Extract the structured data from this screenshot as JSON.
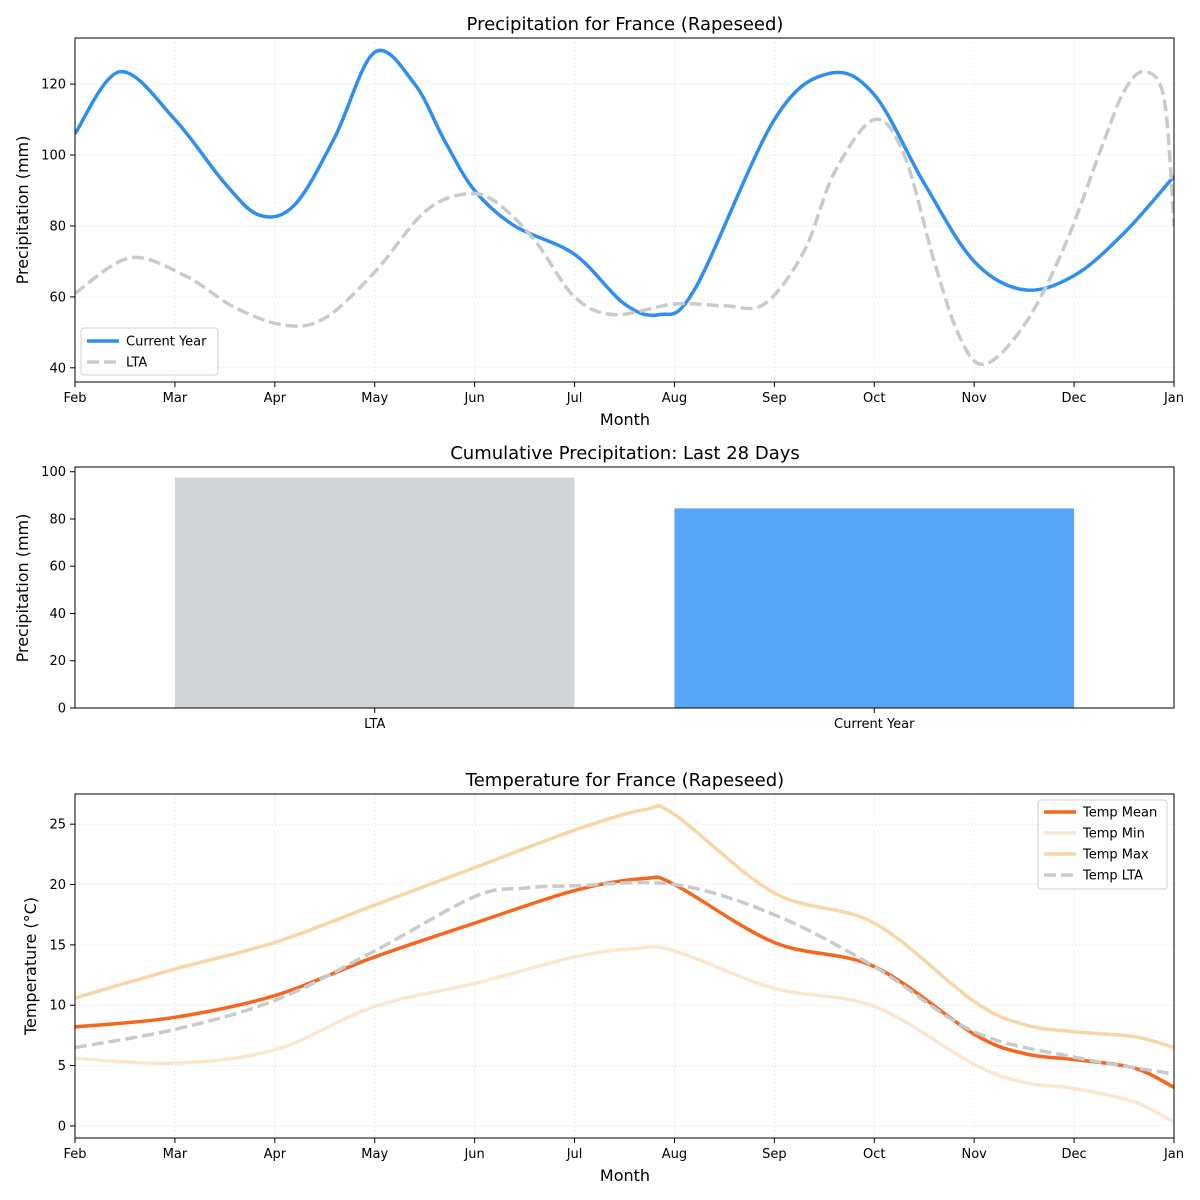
{
  "chart_data": [
    {
      "type": "line",
      "title": "Precipitation for France (Rapeseed)",
      "xlabel": "Month",
      "ylabel": "Precipitation (mm)",
      "x_ticks": [
        "Feb",
        "Mar",
        "Apr",
        "May",
        "Jun",
        "Jul",
        "Aug",
        "Sep",
        "Oct",
        "Nov",
        "Dec",
        "Jan"
      ],
      "xlim": [
        0,
        11
      ],
      "ylim": [
        36,
        133
      ],
      "y_ticks": [
        40,
        60,
        80,
        100,
        120
      ],
      "grid": true,
      "legend_position": "lower-left",
      "series": [
        {
          "name": "Current Year",
          "color": "#2f8ff0",
          "style": "solid",
          "points": [
            [
              0,
              106
            ],
            [
              0.45,
              123.5
            ],
            [
              1,
              110
            ],
            [
              1.5,
              92
            ],
            [
              1.85,
              83
            ],
            [
              2.2,
              86
            ],
            [
              2.6,
              105
            ],
            [
              3,
              129
            ],
            [
              3.4,
              120
            ],
            [
              3.7,
              104
            ],
            [
              4,
              90
            ],
            [
              4.4,
              80
            ],
            [
              5,
              72
            ],
            [
              5.5,
              58
            ],
            [
              5.85,
              55
            ],
            [
              6.2,
              62
            ],
            [
              7,
              110
            ],
            [
              7.55,
              123
            ],
            [
              8,
              117
            ],
            [
              8.5,
              92
            ],
            [
              9,
              70
            ],
            [
              9.5,
              62
            ],
            [
              10,
              66
            ],
            [
              10.5,
              78
            ],
            [
              11,
              94
            ]
          ]
        },
        {
          "name": "LTA",
          "color": "#c8cbcd",
          "style": "dashed",
          "points": [
            [
              0,
              61
            ],
            [
              0.55,
              71
            ],
            [
              1.1,
              66
            ],
            [
              1.6,
              57
            ],
            [
              2.1,
              52
            ],
            [
              2.5,
              54
            ],
            [
              3,
              67
            ],
            [
              3.5,
              84
            ],
            [
              3.9,
              89
            ],
            [
              4.2,
              87
            ],
            [
              4.6,
              76
            ],
            [
              5,
              60
            ],
            [
              5.4,
              55
            ],
            [
              6,
              58
            ],
            [
              6.5,
              57.5
            ],
            [
              6.9,
              58
            ],
            [
              7.3,
              73
            ],
            [
              7.6,
              95
            ],
            [
              8,
              110
            ],
            [
              8.3,
              100
            ],
            [
              8.6,
              70
            ],
            [
              8.85,
              49
            ],
            [
              9.1,
              41
            ],
            [
              9.5,
              52
            ],
            [
              9.9,
              74
            ],
            [
              10.3,
              104
            ],
            [
              10.5,
              118
            ],
            [
              10.7,
              123.5
            ],
            [
              10.9,
              116
            ],
            [
              11,
              80
            ]
          ]
        }
      ]
    },
    {
      "type": "bar",
      "title": "Cumulative Precipitation: Last 28 Days",
      "xlabel": "",
      "ylabel": "Precipitation (mm)",
      "categories": [
        "LTA",
        "Current Year"
      ],
      "values": [
        97.5,
        84.5
      ],
      "colors": [
        "#d1d5d8",
        "#58a6fa"
      ],
      "ylim": [
        0,
        102
      ],
      "y_ticks": [
        0,
        20,
        40,
        60,
        80,
        100
      ],
      "grid": false
    },
    {
      "type": "line",
      "title": "Temperature for France (Rapeseed)",
      "xlabel": "Month",
      "ylabel": "Temperature (°C)",
      "x_ticks": [
        "Feb",
        "Mar",
        "Apr",
        "May",
        "Jun",
        "Jul",
        "Aug",
        "Sep",
        "Oct",
        "Nov",
        "Dec",
        "Jan"
      ],
      "xlim": [
        0,
        11
      ],
      "ylim": [
        -1,
        27.5
      ],
      "y_ticks": [
        0,
        5,
        10,
        15,
        20,
        25
      ],
      "grid": true,
      "legend_position": "top-right",
      "series": [
        {
          "name": "Temp Mean",
          "color": "#f5661f",
          "style": "solid",
          "width": 3.5,
          "points": [
            [
              0,
              8.2
            ],
            [
              1,
              9.0
            ],
            [
              2,
              10.8
            ],
            [
              3,
              14.0
            ],
            [
              4,
              16.8
            ],
            [
              5,
              19.5
            ],
            [
              5.7,
              20.5
            ],
            [
              6,
              20.0
            ],
            [
              7,
              15.2
            ],
            [
              8,
              13.2
            ],
            [
              9,
              7.6
            ],
            [
              9.5,
              6.0
            ],
            [
              10,
              5.5
            ],
            [
              10.6,
              4.8
            ],
            [
              11,
              3.2
            ]
          ]
        },
        {
          "name": "Temp Min",
          "color": "#fde6cf",
          "style": "solid",
          "width": 3.5,
          "points": [
            [
              0,
              5.6
            ],
            [
              1,
              5.2
            ],
            [
              2,
              6.3
            ],
            [
              3,
              9.9
            ],
            [
              4,
              11.8
            ],
            [
              5,
              14.0
            ],
            [
              5.6,
              14.7
            ],
            [
              6,
              14.5
            ],
            [
              7,
              11.4
            ],
            [
              8,
              9.9
            ],
            [
              9,
              5.1
            ],
            [
              9.5,
              3.6
            ],
            [
              10,
              3.1
            ],
            [
              10.6,
              2.0
            ],
            [
              11,
              0.3
            ]
          ]
        },
        {
          "name": "Temp Max",
          "color": "#f9d6a5",
          "style": "solid",
          "width": 3.5,
          "points": [
            [
              0,
              10.6
            ],
            [
              1,
              13.0
            ],
            [
              2,
              15.2
            ],
            [
              3,
              18.3
            ],
            [
              4,
              21.4
            ],
            [
              5,
              24.5
            ],
            [
              5.7,
              26.2
            ],
            [
              6,
              25.8
            ],
            [
              7,
              19.3
            ],
            [
              8,
              16.8
            ],
            [
              9,
              10.3
            ],
            [
              9.5,
              8.4
            ],
            [
              10,
              7.8
            ],
            [
              10.6,
              7.4
            ],
            [
              11,
              6.5
            ]
          ]
        },
        {
          "name": "Temp LTA",
          "color": "#c8cbcd",
          "style": "dashed",
          "width": 3.5,
          "points": [
            [
              0,
              6.5
            ],
            [
              1,
              8.0
            ],
            [
              2,
              10.4
            ],
            [
              3,
              14.5
            ],
            [
              4,
              19.0
            ],
            [
              4.5,
              19.7
            ],
            [
              5,
              19.9
            ],
            [
              6,
              20.0
            ],
            [
              7,
              17.5
            ],
            [
              8,
              13.2
            ],
            [
              9,
              7.8
            ],
            [
              10,
              5.7
            ],
            [
              11,
              4.3
            ]
          ]
        }
      ]
    }
  ]
}
